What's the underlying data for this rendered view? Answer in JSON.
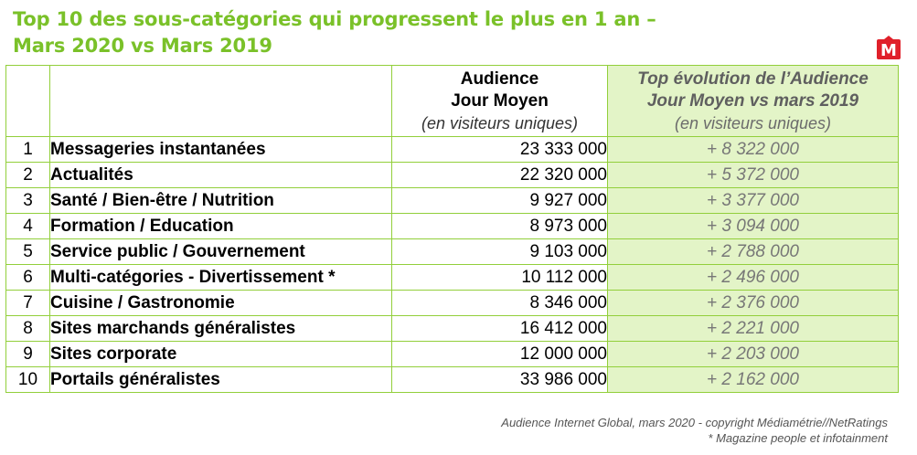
{
  "title_line1": "Top 10 des sous-catégories qui progressent le plus en 1 an –",
  "title_line2": "Mars 2020 vs Mars 2019",
  "logo_letter": "M",
  "colors": {
    "title": "#7ac129",
    "border": "#92cf3b",
    "highlight_column": "#e3f4c7",
    "logo": "#e0202a"
  },
  "table": {
    "header_audience": [
      "Audience",
      "Jour Moyen"
    ],
    "header_audience_note": "(en visiteurs uniques)",
    "header_evolution": [
      "Top évolution de l’Audience",
      "Jour Moyen vs mars 2019"
    ],
    "header_evolution_note": "(en visiteurs uniques)",
    "rows": [
      {
        "rank": "1",
        "name": "Messageries instantanées",
        "audience": "23 333 000",
        "evolution": "+ 8 322 000"
      },
      {
        "rank": "2",
        "name": "Actualités",
        "audience": "22 320 000",
        "evolution": "+ 5 372 000"
      },
      {
        "rank": "3",
        "name": "Santé / Bien-être / Nutrition",
        "audience": "9 927 000",
        "evolution": "+ 3 377 000"
      },
      {
        "rank": "4",
        "name": "Formation / Education",
        "audience": "8 973 000",
        "evolution": "+ 3 094 000"
      },
      {
        "rank": "5",
        "name": "Service public / Gouvernement",
        "audience": "9 103 000",
        "evolution": "+ 2 788 000"
      },
      {
        "rank": "6",
        "name": "Multi-catégories - Divertissement *",
        "audience": "10 112 000",
        "evolution": "+ 2 496 000"
      },
      {
        "rank": "7",
        "name": "Cuisine / Gastronomie",
        "audience": "8 346 000",
        "evolution": "+ 2 376 000"
      },
      {
        "rank": "8",
        "name": "Sites marchands généralistes",
        "audience": "16 412 000",
        "evolution": "+ 2 221 000"
      },
      {
        "rank": "9",
        "name": "Sites corporate",
        "audience": "12 000 000",
        "evolution": "+ 2 203 000"
      },
      {
        "rank": "10",
        "name": "Portails généralistes",
        "audience": "33 986 000",
        "evolution": "+ 2 162 000"
      }
    ]
  },
  "source_line1": "Audience Internet Global, mars 2020  - copyright Médiamétrie//NetRatings",
  "source_line2": "* Magazine people et infotainment"
}
